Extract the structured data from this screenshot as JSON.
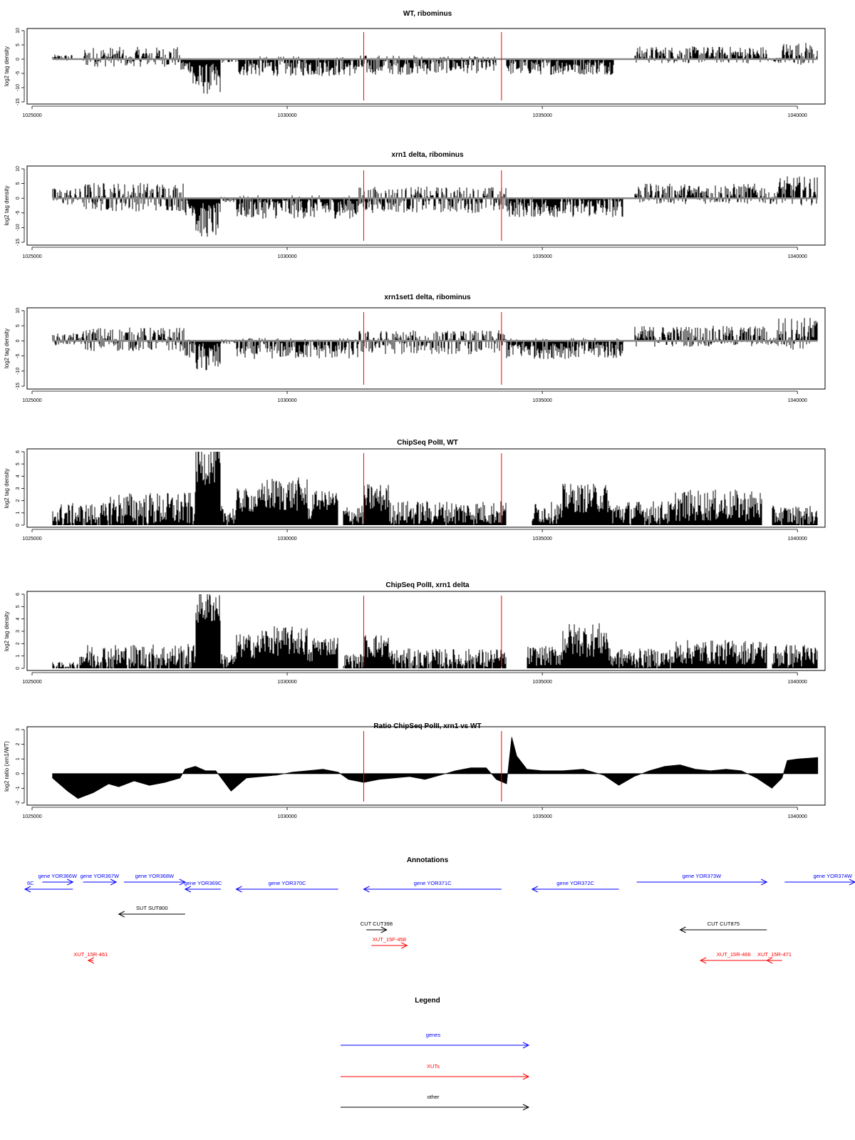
{
  "chart_data": [
    {
      "type": "bar",
      "title": "WT, ribominus",
      "xlabel": "",
      "ylabel": "log2 tag density",
      "xlim": [
        1025000,
        1040500
      ],
      "ylim": [
        -15,
        10
      ],
      "xticks": [
        1025000,
        1030000,
        1035000,
        1040000
      ],
      "yticks": [
        -15,
        -10,
        -5,
        0,
        5,
        10
      ],
      "grid": false,
      "data_start": 1025400,
      "data_end": 1040400,
      "segments": [
        {
          "from": 1025400,
          "to": 1025800,
          "mean": 0.4,
          "amp": 1.2
        },
        {
          "from": 1025800,
          "to": 1026000,
          "mean": 0,
          "amp": 0.1
        },
        {
          "from": 1026000,
          "to": 1026800,
          "mean": 0.8,
          "amp": 3.5
        },
        {
          "from": 1026800,
          "to": 1027000,
          "mean": -0.5,
          "amp": 2
        },
        {
          "from": 1027000,
          "to": 1027900,
          "mean": 0.8,
          "amp": 3.5
        },
        {
          "from": 1027900,
          "to": 1028150,
          "mean": -2.5,
          "amp": 2.5
        },
        {
          "from": 1028150,
          "to": 1028700,
          "mean": -7,
          "amp": 5.5
        },
        {
          "from": 1028700,
          "to": 1029000,
          "mean": -0.5,
          "amp": 0.8
        },
        {
          "from": 1029000,
          "to": 1031400,
          "mean": -2.5,
          "amp": 3.5
        },
        {
          "from": 1031400,
          "to": 1033100,
          "mean": -2,
          "amp": 3.5
        },
        {
          "from": 1033100,
          "to": 1034100,
          "mean": -2,
          "amp": 3
        },
        {
          "from": 1034100,
          "to": 1034300,
          "mean": 0,
          "amp": 0.3
        },
        {
          "from": 1034300,
          "to": 1036400,
          "mean": -2.5,
          "amp": 3
        },
        {
          "from": 1036400,
          "to": 1036800,
          "mean": 0,
          "amp": 0.2
        },
        {
          "from": 1036800,
          "to": 1039400,
          "mean": 1.5,
          "amp": 3
        },
        {
          "from": 1039400,
          "to": 1039700,
          "mean": -0.3,
          "amp": 1
        },
        {
          "from": 1039700,
          "to": 1040400,
          "mean": 2,
          "amp": 4
        }
      ],
      "vlines": [
        1031500,
        1034200
      ],
      "vline_color": "#ff0000"
    },
    {
      "type": "bar",
      "title": "xrn1 delta, ribominus",
      "xlabel": "",
      "ylabel": "log2 tag density",
      "xlim": [
        1025000,
        1040500
      ],
      "ylim": [
        -15,
        10
      ],
      "xticks": [
        1025000,
        1030000,
        1035000,
        1040000
      ],
      "yticks": [
        -15,
        -10,
        -5,
        0,
        5,
        10
      ],
      "grid": false,
      "data_start": 1025400,
      "data_end": 1040400,
      "segments": [
        {
          "from": 1025400,
          "to": 1026000,
          "mean": 0.5,
          "amp": 3
        },
        {
          "from": 1026000,
          "to": 1028000,
          "mean": 0.5,
          "amp": 5
        },
        {
          "from": 1028000,
          "to": 1028200,
          "mean": -3,
          "amp": 3
        },
        {
          "from": 1028200,
          "to": 1028700,
          "mean": -7.5,
          "amp": 6
        },
        {
          "from": 1028700,
          "to": 1029000,
          "mean": -0.5,
          "amp": 1
        },
        {
          "from": 1029000,
          "to": 1031400,
          "mean": -3,
          "amp": 4
        },
        {
          "from": 1031400,
          "to": 1034300,
          "mean": -0.5,
          "amp": 4.5
        },
        {
          "from": 1034300,
          "to": 1036600,
          "mean": -3,
          "amp": 3.5
        },
        {
          "from": 1036600,
          "to": 1036800,
          "mean": 0,
          "amp": 0.2
        },
        {
          "from": 1036800,
          "to": 1039400,
          "mean": 1.5,
          "amp": 3.5
        },
        {
          "from": 1039400,
          "to": 1039600,
          "mean": 0,
          "amp": 2
        },
        {
          "from": 1039600,
          "to": 1040400,
          "mean": 2.5,
          "amp": 5
        }
      ],
      "vlines": [
        1031500,
        1034200
      ],
      "vline_color": "#ff0000"
    },
    {
      "type": "bar",
      "title": "xrn1set1 delta, ribominus",
      "xlabel": "",
      "ylabel": "log2 tag density",
      "xlim": [
        1025000,
        1040500
      ],
      "ylim": [
        -15,
        10
      ],
      "xticks": [
        1025000,
        1030000,
        1035000,
        1040000
      ],
      "yticks": [
        -15,
        -10,
        -5,
        0,
        5,
        10
      ],
      "grid": false,
      "data_start": 1025400,
      "data_end": 1040400,
      "segments": [
        {
          "from": 1025400,
          "to": 1026000,
          "mean": 0.5,
          "amp": 2
        },
        {
          "from": 1026000,
          "to": 1028000,
          "mean": 0.5,
          "amp": 4
        },
        {
          "from": 1028000,
          "to": 1028200,
          "mean": -2.5,
          "amp": 3
        },
        {
          "from": 1028200,
          "to": 1028700,
          "mean": -5.5,
          "amp": 5
        },
        {
          "from": 1028700,
          "to": 1029000,
          "mean": -0.3,
          "amp": 0.8
        },
        {
          "from": 1029000,
          "to": 1031400,
          "mean": -2.5,
          "amp": 3.5
        },
        {
          "from": 1031400,
          "to": 1034300,
          "mean": -0.5,
          "amp": 4
        },
        {
          "from": 1034300,
          "to": 1036600,
          "mean": -2.5,
          "amp": 3.5
        },
        {
          "from": 1036600,
          "to": 1036800,
          "mean": 0,
          "amp": 0.2
        },
        {
          "from": 1036800,
          "to": 1039400,
          "mean": 1.5,
          "amp": 3.5
        },
        {
          "from": 1039400,
          "to": 1039600,
          "mean": 0,
          "amp": 1.5
        },
        {
          "from": 1039600,
          "to": 1040400,
          "mean": 2.5,
          "amp": 5.5
        }
      ],
      "vlines": [
        1031500,
        1034200
      ],
      "vline_color": "#ff0000"
    },
    {
      "type": "bar",
      "title": "ChipSeq PolII, WT",
      "xlabel": "",
      "ylabel": "log2 tag density",
      "xlim": [
        1025000,
        1040500
      ],
      "ylim": [
        0,
        6
      ],
      "xticks": [
        1025000,
        1030000,
        1035000,
        1040000
      ],
      "yticks": [
        0,
        1,
        2,
        3,
        4,
        5,
        6
      ],
      "grid": false,
      "data_start": 1025400,
      "data_end": 1040400,
      "segments": [
        {
          "from": 1025400,
          "to": 1026500,
          "mean": 0.8,
          "amp": 1
        },
        {
          "from": 1026500,
          "to": 1028200,
          "mean": 1.3,
          "amp": 1.4
        },
        {
          "from": 1028200,
          "to": 1028700,
          "mean": 5,
          "amp": 1.7
        },
        {
          "from": 1028700,
          "to": 1029000,
          "mean": 0.8,
          "amp": 0.8
        },
        {
          "from": 1029000,
          "to": 1029500,
          "mean": 2,
          "amp": 1
        },
        {
          "from": 1029500,
          "to": 1030400,
          "mean": 2.5,
          "amp": 1.4
        },
        {
          "from": 1030400,
          "to": 1030500,
          "mean": 1,
          "amp": 0.6
        },
        {
          "from": 1030500,
          "to": 1031000,
          "mean": 2,
          "amp": 0.8
        },
        {
          "from": 1031000,
          "to": 1031100,
          "mean": 0,
          "amp": 0
        },
        {
          "from": 1031100,
          "to": 1031500,
          "mean": 0.8,
          "amp": 0.8
        },
        {
          "from": 1031500,
          "to": 1032000,
          "mean": 2.2,
          "amp": 1.2
        },
        {
          "from": 1032000,
          "to": 1034300,
          "mean": 1,
          "amp": 1
        },
        {
          "from": 1034300,
          "to": 1034800,
          "mean": 0,
          "amp": 0
        },
        {
          "from": 1034800,
          "to": 1035400,
          "mean": 1,
          "amp": 0.9
        },
        {
          "from": 1035400,
          "to": 1036300,
          "mean": 2.2,
          "amp": 1.2
        },
        {
          "from": 1036300,
          "to": 1037600,
          "mean": 1,
          "amp": 1
        },
        {
          "from": 1037600,
          "to": 1039300,
          "mean": 1.6,
          "amp": 1.3
        },
        {
          "from": 1039300,
          "to": 1039500,
          "mean": 0,
          "amp": 0
        },
        {
          "from": 1039500,
          "to": 1040400,
          "mean": 0.8,
          "amp": 0.8
        }
      ],
      "vlines": [
        1031500,
        1034200
      ],
      "vline_color": "#ff0000"
    },
    {
      "type": "bar",
      "title": "ChipSeq PolII, xrn1 delta",
      "xlabel": "",
      "ylabel": "log2 tag density",
      "xlim": [
        1025000,
        1040500
      ],
      "ylim": [
        0,
        6
      ],
      "xticks": [
        1025000,
        1030000,
        1035000,
        1040000
      ],
      "yticks": [
        0,
        1,
        2,
        3,
        4,
        5,
        6
      ],
      "grid": false,
      "data_start": 1025400,
      "data_end": 1040400,
      "segments": [
        {
          "from": 1025400,
          "to": 1025900,
          "mean": 0.2,
          "amp": 0.3
        },
        {
          "from": 1025900,
          "to": 1028200,
          "mean": 0.9,
          "amp": 1.1
        },
        {
          "from": 1028200,
          "to": 1028700,
          "mean": 5,
          "amp": 1.4
        },
        {
          "from": 1028700,
          "to": 1029000,
          "mean": 0.6,
          "amp": 0.6
        },
        {
          "from": 1029000,
          "to": 1029500,
          "mean": 1.8,
          "amp": 1
        },
        {
          "from": 1029500,
          "to": 1030400,
          "mean": 2.2,
          "amp": 1.2
        },
        {
          "from": 1030400,
          "to": 1030500,
          "mean": 1,
          "amp": 0.6
        },
        {
          "from": 1030500,
          "to": 1031000,
          "mean": 1.8,
          "amp": 0.8
        },
        {
          "from": 1031000,
          "to": 1031100,
          "mean": 0,
          "amp": 0
        },
        {
          "from": 1031100,
          "to": 1031500,
          "mean": 0.6,
          "amp": 0.6
        },
        {
          "from": 1031500,
          "to": 1032000,
          "mean": 1.8,
          "amp": 1
        },
        {
          "from": 1032000,
          "to": 1034300,
          "mean": 0.7,
          "amp": 0.9
        },
        {
          "from": 1034300,
          "to": 1034700,
          "mean": 0,
          "amp": 0
        },
        {
          "from": 1034700,
          "to": 1035400,
          "mean": 1,
          "amp": 0.8
        },
        {
          "from": 1035400,
          "to": 1036300,
          "mean": 2.3,
          "amp": 1.4
        },
        {
          "from": 1036300,
          "to": 1037600,
          "mean": 0.8,
          "amp": 0.8
        },
        {
          "from": 1037600,
          "to": 1039400,
          "mean": 1.3,
          "amp": 1
        },
        {
          "from": 1039400,
          "to": 1039500,
          "mean": 0,
          "amp": 0
        },
        {
          "from": 1039500,
          "to": 1040400,
          "mean": 1,
          "amp": 1
        }
      ],
      "vlines": [
        1031500,
        1034200
      ],
      "vline_color": "#ff0000"
    },
    {
      "type": "area",
      "title": "Ratio ChipSeq PolII, xrn1 vs WT",
      "xlabel": "",
      "ylabel": "log2 ratio (xrn1/WT)",
      "xlim": [
        1025000,
        1040500
      ],
      "ylim": [
        -2,
        3
      ],
      "xticks": [
        1025000,
        1030000,
        1035000,
        1040000
      ],
      "yticks": [
        -2,
        -1,
        0,
        1,
        2,
        3
      ],
      "grid": false,
      "x": [
        1025400,
        1025700,
        1025900,
        1026200,
        1026500,
        1026700,
        1027000,
        1027300,
        1027600,
        1027900,
        1028000,
        1028200,
        1028400,
        1028600,
        1028900,
        1029200,
        1029500,
        1029800,
        1030100,
        1030400,
        1030700,
        1031000,
        1031200,
        1031500,
        1031800,
        1032100,
        1032400,
        1032700,
        1033000,
        1033300,
        1033600,
        1033900,
        1034100,
        1034300,
        1034400,
        1034500,
        1034700,
        1035000,
        1035400,
        1035800,
        1036200,
        1036500,
        1036800,
        1037100,
        1037400,
        1037700,
        1038000,
        1038300,
        1038600,
        1038900,
        1039200,
        1039500,
        1039700,
        1039800,
        1040000,
        1040400
      ],
      "y": [
        -0.3,
        -1.2,
        -1.7,
        -1.3,
        -0.7,
        -0.9,
        -0.5,
        -0.8,
        -0.6,
        -0.3,
        0.3,
        0.5,
        0.2,
        0.2,
        -1.2,
        -0.3,
        -0.2,
        -0.1,
        0.1,
        0.2,
        0.3,
        0.1,
        -0.4,
        -0.6,
        -0.4,
        -0.3,
        -0.2,
        -0.4,
        -0.1,
        0.2,
        0.4,
        0.4,
        -0.4,
        -0.7,
        2.5,
        1.2,
        0.3,
        0.2,
        0.2,
        0.3,
        -0.1,
        -0.8,
        -0.2,
        0.2,
        0.5,
        0.6,
        0.3,
        0.2,
        0.3,
        0.2,
        -0.3,
        -1,
        -0.3,
        0.9,
        1,
        1.1
      ],
      "vlines": [
        1031500,
        1034200
      ],
      "vline_color": "#ff0000"
    }
  ],
  "annotations": {
    "title": "Annotations",
    "xlim": [
      1025000,
      1040500
    ],
    "colors": {
      "gene": "#0000ff",
      "xut": "#ff0000",
      "other": "#000000"
    },
    "features": [
      {
        "label": "6C",
        "start": 1024300,
        "end": 1025800,
        "strand": "-",
        "kind": "gene",
        "row": 1
      },
      {
        "label": "gene YOR366W",
        "start": 1025200,
        "end": 1025800,
        "strand": "+",
        "kind": "gene",
        "row": 0
      },
      {
        "label": "gene YOR367W",
        "start": 1026000,
        "end": 1026650,
        "strand": "+",
        "kind": "gene",
        "row": 0
      },
      {
        "label": "gene YOR368W",
        "start": 1026800,
        "end": 1028000,
        "strand": "+",
        "kind": "gene",
        "row": 0
      },
      {
        "label": "gene YOR369C",
        "start": 1028000,
        "end": 1028700,
        "strand": "-",
        "kind": "gene",
        "row": 1
      },
      {
        "label": "gene YOR370C",
        "start": 1029000,
        "end": 1031000,
        "strand": "-",
        "kind": "gene",
        "row": 1
      },
      {
        "label": "gene YOR371C",
        "start": 1031500,
        "end": 1034200,
        "strand": "-",
        "kind": "gene",
        "row": 1
      },
      {
        "label": "gene YOR372C",
        "start": 1034800,
        "end": 1036500,
        "strand": "-",
        "kind": "gene",
        "row": 1
      },
      {
        "label": "gene YOR373W",
        "start": 1036850,
        "end": 1039400,
        "strand": "+",
        "kind": "gene",
        "row": 0
      },
      {
        "label": "gene YOR374W",
        "start": 1039750,
        "end": 1041500,
        "strand": "+",
        "kind": "gene",
        "row": 0
      },
      {
        "label": "SUT SUT800",
        "start": 1026700,
        "end": 1028000,
        "strand": "-",
        "kind": "other",
        "row": 2
      },
      {
        "label": "CUT CUT398",
        "start": 1031550,
        "end": 1031950,
        "strand": "+",
        "kind": "other",
        "row": 3
      },
      {
        "label": "CUT CUT875",
        "start": 1037700,
        "end": 1039400,
        "strand": "-",
        "kind": "other",
        "row": 3
      },
      {
        "label": "XUT_15F-458",
        "start": 1031650,
        "end": 1032350,
        "strand": "+",
        "kind": "xut",
        "row": 4
      },
      {
        "label": "XUT_15R-461",
        "start": 1026100,
        "end": 1026200,
        "strand": "-",
        "kind": "xut",
        "row": 5
      },
      {
        "label": "XUT_15R-466",
        "start": 1038100,
        "end": 1039400,
        "strand": "-",
        "kind": "xut",
        "row": 5
      },
      {
        "label": "XUT_15R-471",
        "start": 1039400,
        "end": 1039700,
        "strand": "-",
        "kind": "xut",
        "row": 5
      }
    ]
  },
  "legend": {
    "title": "Legend",
    "items": [
      {
        "label": "genes",
        "color": "#0000ff"
      },
      {
        "label": "XUTs",
        "color": "#ff0000"
      },
      {
        "label": "other",
        "color": "#000000"
      }
    ]
  }
}
